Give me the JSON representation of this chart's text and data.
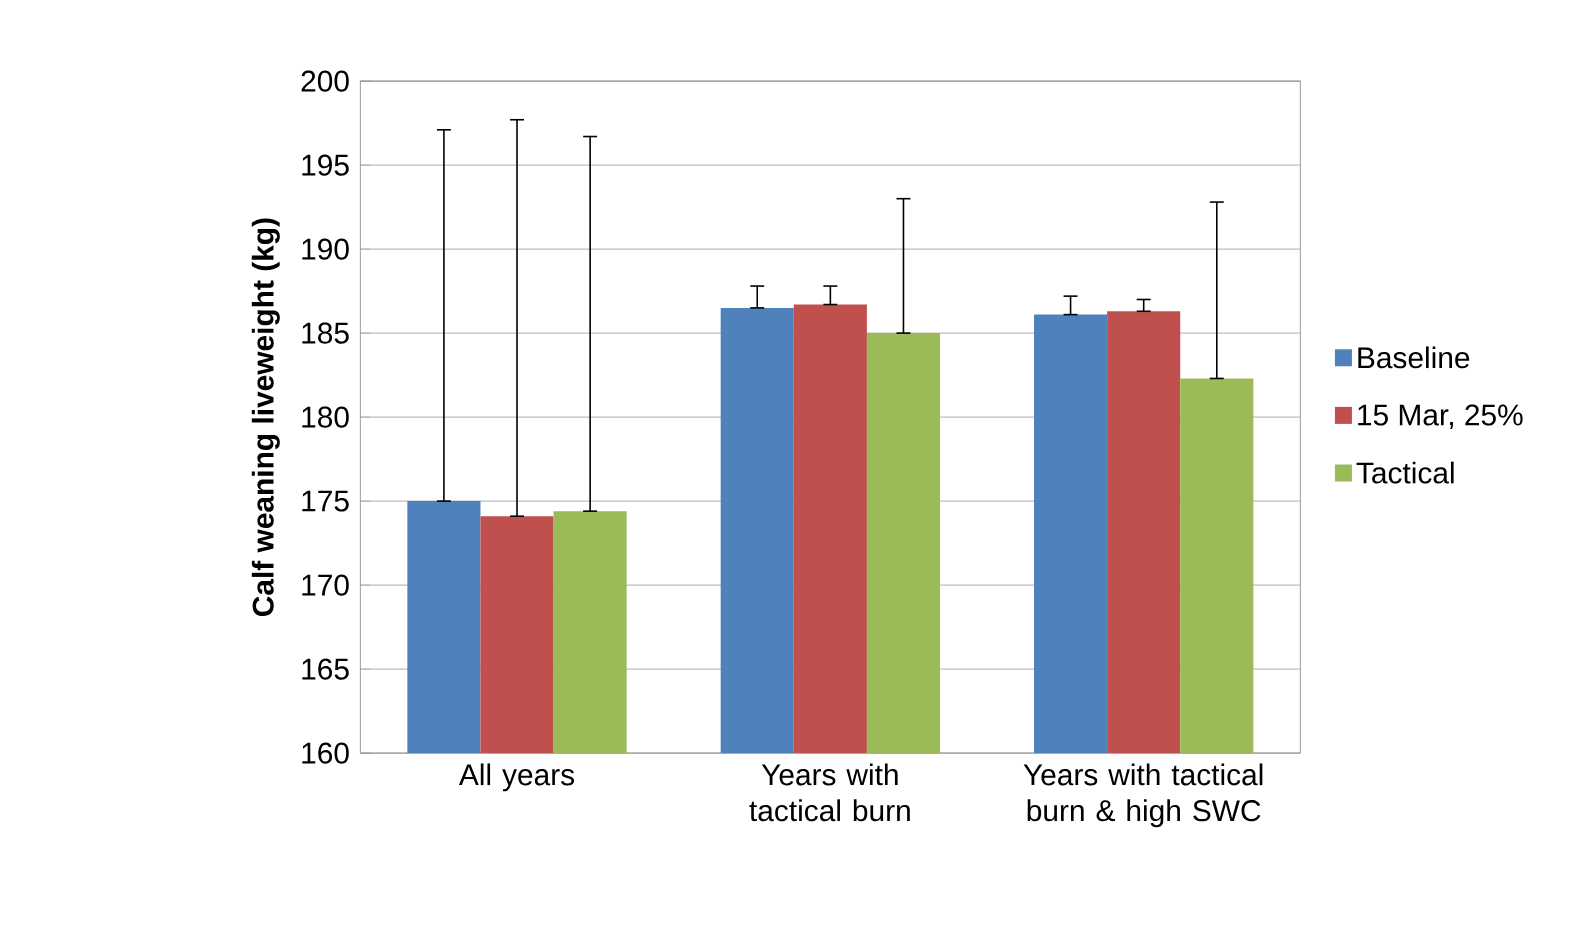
{
  "chart_data": {
    "type": "bar",
    "ylabel": "Calf weaning liveweight (kg)",
    "categories": [
      "All years",
      "Years with tactical burn",
      "Years with tactical burn & high SWC"
    ],
    "series": [
      {
        "name": "Baseline",
        "color": "#4f81bd",
        "values": [
          175.0,
          186.5,
          186.1
        ],
        "errors": [
          [
            175.0,
            197.1
          ],
          [
            186.5,
            187.8
          ],
          [
            186.1,
            187.2
          ]
        ]
      },
      {
        "name": "15 Mar, 25%",
        "color": "#c0504d",
        "values": [
          174.1,
          186.7,
          186.3
        ],
        "errors": [
          [
            174.1,
            197.7
          ],
          [
            186.7,
            187.8
          ],
          [
            186.3,
            187.0
          ]
        ]
      },
      {
        "name": "Tactical",
        "color": "#9bbb59",
        "values": [
          174.4,
          185.0,
          182.3
        ],
        "errors": [
          [
            174.4,
            196.7
          ],
          [
            185.0,
            193.0
          ],
          [
            182.3,
            192.8
          ]
        ]
      }
    ],
    "ylim": [
      160,
      200
    ],
    "yticks": [
      160,
      165,
      170,
      175,
      180,
      185,
      190,
      195,
      200
    ],
    "grid": "y",
    "legend": "right"
  }
}
